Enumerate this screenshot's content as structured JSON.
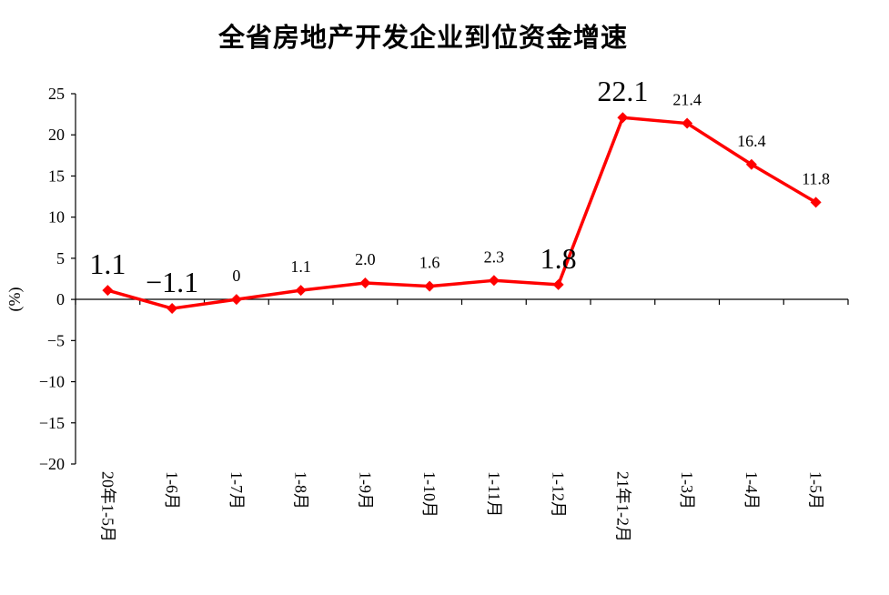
{
  "chart_data": {
    "type": "line",
    "title": "全省房地产开发企业到位资金增速",
    "xlabel": "",
    "ylabel": "(%)",
    "ylim": [
      -20,
      25
    ],
    "yticks": [
      25,
      20,
      15,
      10,
      5,
      0,
      -5,
      -10,
      -15,
      -20
    ],
    "ytick_labels": [
      "25",
      "20",
      "15",
      "10",
      "5",
      "0",
      "−5",
      "−10",
      "−15",
      "−20"
    ],
    "grid": false,
    "legend": "none",
    "categories": [
      "20年1-5月",
      "1-6月",
      "1-7月",
      "1-8月",
      "1-9月",
      "1-10月",
      "1-11月",
      "1-12月",
      "21年1-2月",
      "1-3月",
      "1-4月",
      "1-5月"
    ],
    "series": [
      {
        "values": [
          1.1,
          -1.1,
          0,
          1.1,
          2.0,
          1.6,
          2.3,
          1.8,
          22.1,
          21.4,
          16.4,
          11.8
        ],
        "data_labels": [
          "1.1",
          "−1.1",
          "0",
          "1.1",
          "2.0",
          "1.6",
          "2.3",
          "1.8",
          "22.1",
          "21.4",
          "16.4",
          "11.8"
        ],
        "large_label_indices": [
          0,
          1,
          7,
          8
        ],
        "color": "#ff0000",
        "marker": "diamond"
      }
    ]
  }
}
